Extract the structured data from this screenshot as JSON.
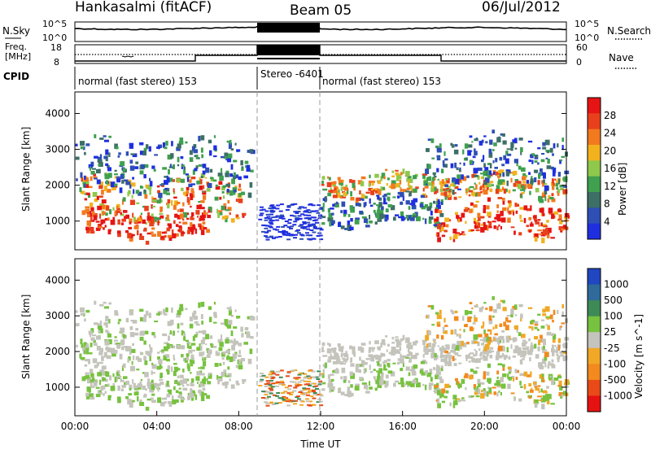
{
  "header": {
    "station": "Hankasalmi (fitACF)",
    "beam": "Beam 05",
    "date": "06/Jul/2012"
  },
  "top_panels": {
    "noise": {
      "left_label": "N.Sky",
      "right_label": "N.Search",
      "left_ticks": [
        "10^5",
        "10^0"
      ],
      "right_ticks": [
        "10^5",
        "10^0"
      ]
    },
    "freq": {
      "left_label_1": "Freq.",
      "left_label_2": "[MHz]",
      "left_ticks": [
        "18",
        "8"
      ],
      "right_label": "Nave",
      "right_ticks": [
        "60",
        "0"
      ]
    },
    "cpid": {
      "label": "CPID",
      "segments": [
        "normal (fast stereo) 153",
        "Stereo -6401",
        "normal (fast stereo) 153"
      ]
    }
  },
  "colors": {
    "power": [
      "#1f2fe0",
      "#2e4fb4",
      "#3d6f66",
      "#3fa04f",
      "#8fc84a",
      "#f2b21e",
      "#f27a1e",
      "#e8401c",
      "#e61414"
    ],
    "velocity": [
      "#2046c0",
      "#2f6a9a",
      "#3e8a56",
      "#77c23f",
      "#c4c4bc",
      "#f0a826",
      "#f28a20",
      "#e84a18",
      "#e61212"
    ]
  },
  "chart_data": [
    {
      "type": "heatmap",
      "panel": "power",
      "ylabel": "Slant Range [km]",
      "y_ticks": [
        "4000",
        "3000",
        "2000",
        "1000"
      ],
      "ylim": [
        200,
        4600
      ],
      "x_ticks": [
        "00:00",
        "04:00",
        "08:00",
        "12:00",
        "16:00",
        "20:00",
        "00:00"
      ],
      "xlim": [
        0,
        24
      ],
      "colorbar_label": "Power [dB]",
      "colorbar_ticks": [
        "28",
        "24",
        "20",
        "16",
        "12",
        "8",
        "4"
      ],
      "colorbar_range": [
        0,
        32
      ]
    },
    {
      "type": "heatmap",
      "panel": "velocity",
      "ylabel": "Slant Range [km]",
      "y_ticks": [
        "4000",
        "3000",
        "2000",
        "1000"
      ],
      "ylim": [
        200,
        4600
      ],
      "x_ticks": [
        "00:00",
        "04:00",
        "08:00",
        "12:00",
        "16:00",
        "20:00",
        "00:00"
      ],
      "xlim": [
        0,
        24
      ],
      "xlabel": "Time UT",
      "colorbar_label": "Velocity [m s^-1]",
      "colorbar_ticks": [
        "1000",
        "500",
        "100",
        "25",
        "-25",
        "-100",
        "-500",
        "-1000"
      ]
    }
  ]
}
